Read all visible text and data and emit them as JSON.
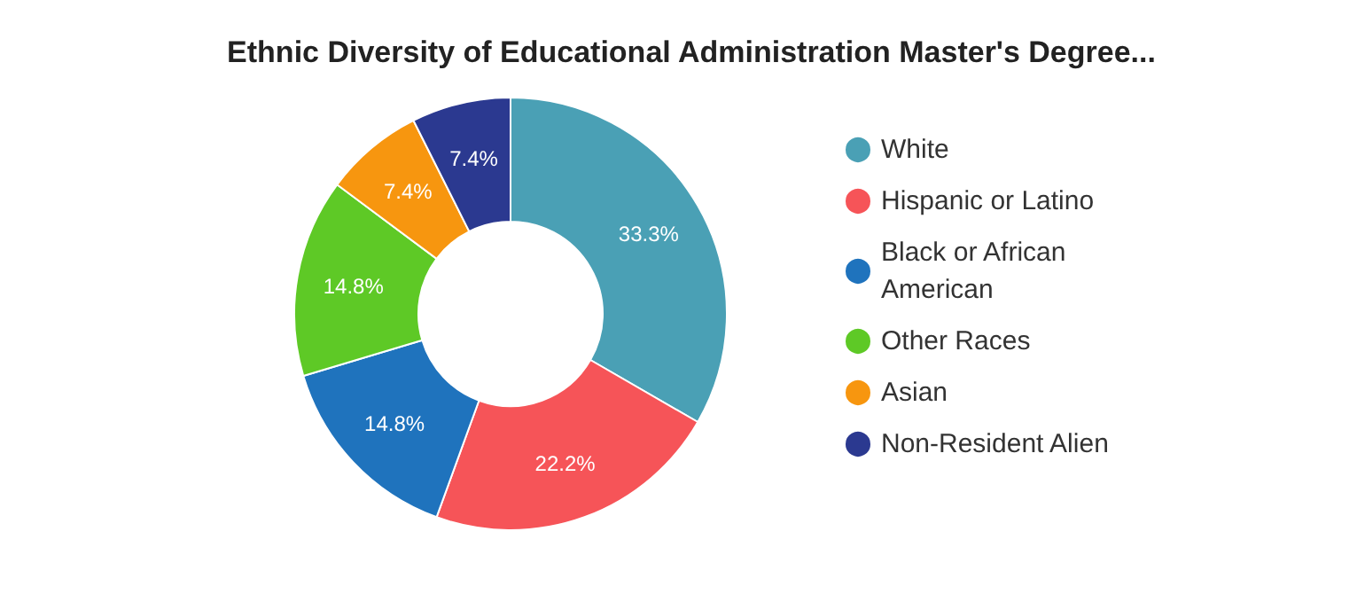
{
  "chart_data": {
    "type": "donut",
    "title": "Ethnic Diversity of Educational Administration Master's Degree...",
    "categories": [
      "White",
      "Hispanic or Latino",
      "Black or African American",
      "Other Races",
      "Asian",
      "Non-Resident Alien"
    ],
    "values": [
      33.3,
      22.2,
      14.8,
      14.8,
      7.4,
      7.4
    ],
    "value_labels": [
      "33.3%",
      "22.2%",
      "14.8%",
      "14.8%",
      "7.4%",
      "7.4%"
    ],
    "colors": [
      "#4aa0b5",
      "#f65458",
      "#1f73bd",
      "#5ec926",
      "#f7960f",
      "#2b3990"
    ],
    "legend": "right"
  }
}
